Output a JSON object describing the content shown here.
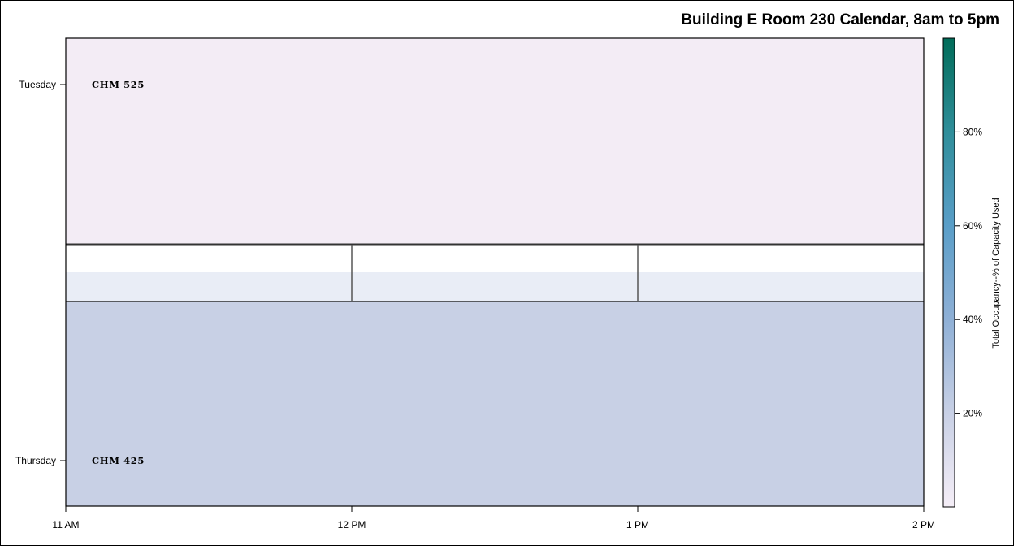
{
  "chart_data": {
    "type": "heatmap",
    "title": "Building E Room 230 Calendar, 8am to 5pm",
    "x_ticks": [
      "11 AM",
      "12 PM",
      "1 PM",
      "2 PM"
    ],
    "xlim": [
      "11 AM",
      "2 PM"
    ],
    "y_ticks": [
      "Tuesday",
      "Thursday"
    ],
    "events": [
      {
        "day": "Tuesday",
        "course": "CHM 525",
        "start": "11 AM",
        "end": "2 PM",
        "occupancy_pct": 5,
        "color": "#f3ecf5"
      },
      {
        "day": "Thursday",
        "course": "CHM 425",
        "start": "11 AM",
        "end": "2 PM",
        "occupancy_pct": 20,
        "color": "#c8d0e5"
      }
    ],
    "colorbar": {
      "title": "Total Occupancy--% of Capacity Used",
      "ticks": [
        "20%",
        "40%",
        "60%",
        "80%"
      ],
      "tick_values": [
        20,
        40,
        60,
        80
      ],
      "range": [
        0,
        100
      ],
      "colors": [
        "#f5eef7",
        "#c8d0e5",
        "#8fb0d6",
        "#5a9ec8",
        "#2f8e9a",
        "#016c59"
      ]
    }
  }
}
